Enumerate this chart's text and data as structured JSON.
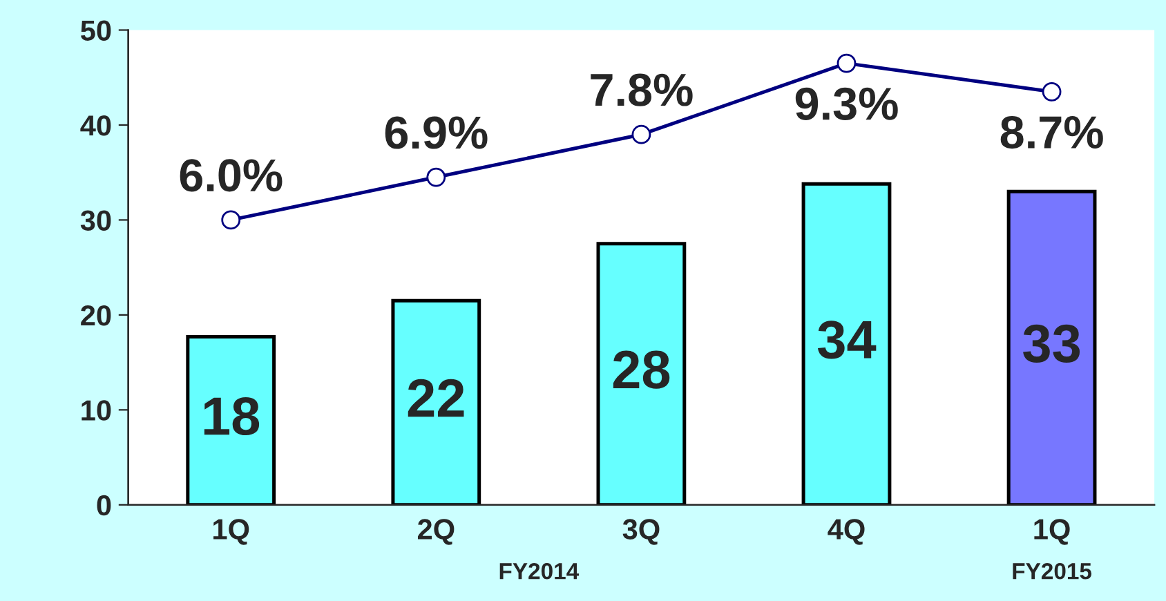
{
  "chart_data": {
    "type": "bar",
    "categories": [
      "1Q",
      "2Q",
      "3Q",
      "4Q",
      "1Q"
    ],
    "series": [
      {
        "colors": [
          "#66ffff",
          "#66ffff",
          "#66ffff",
          "#66ffff",
          "#7777ff"
        ],
        "values": [
          17.7,
          21.5,
          27.5,
          33.8,
          33.0
        ],
        "value_labels": [
          "18",
          "22",
          "28",
          "34",
          "33"
        ]
      },
      {
        "type": "line",
        "axis": "y2",
        "color": "#000080",
        "values": [
          6.0,
          6.9,
          7.8,
          9.3,
          8.7
        ],
        "value_labels": [
          "6.0%",
          "6.9%",
          "7.8%",
          "9.3%",
          "8.7%"
        ]
      }
    ],
    "ylim": [
      0,
      50
    ],
    "yticks": [
      0,
      10,
      20,
      30,
      40,
      50
    ],
    "y2lim": [
      0,
      10
    ],
    "tick_labels": "xy",
    "marker": "circle",
    "annotations": [
      "FY2014",
      "FY2015"
    ],
    "grid": false,
    "legend": false
  }
}
